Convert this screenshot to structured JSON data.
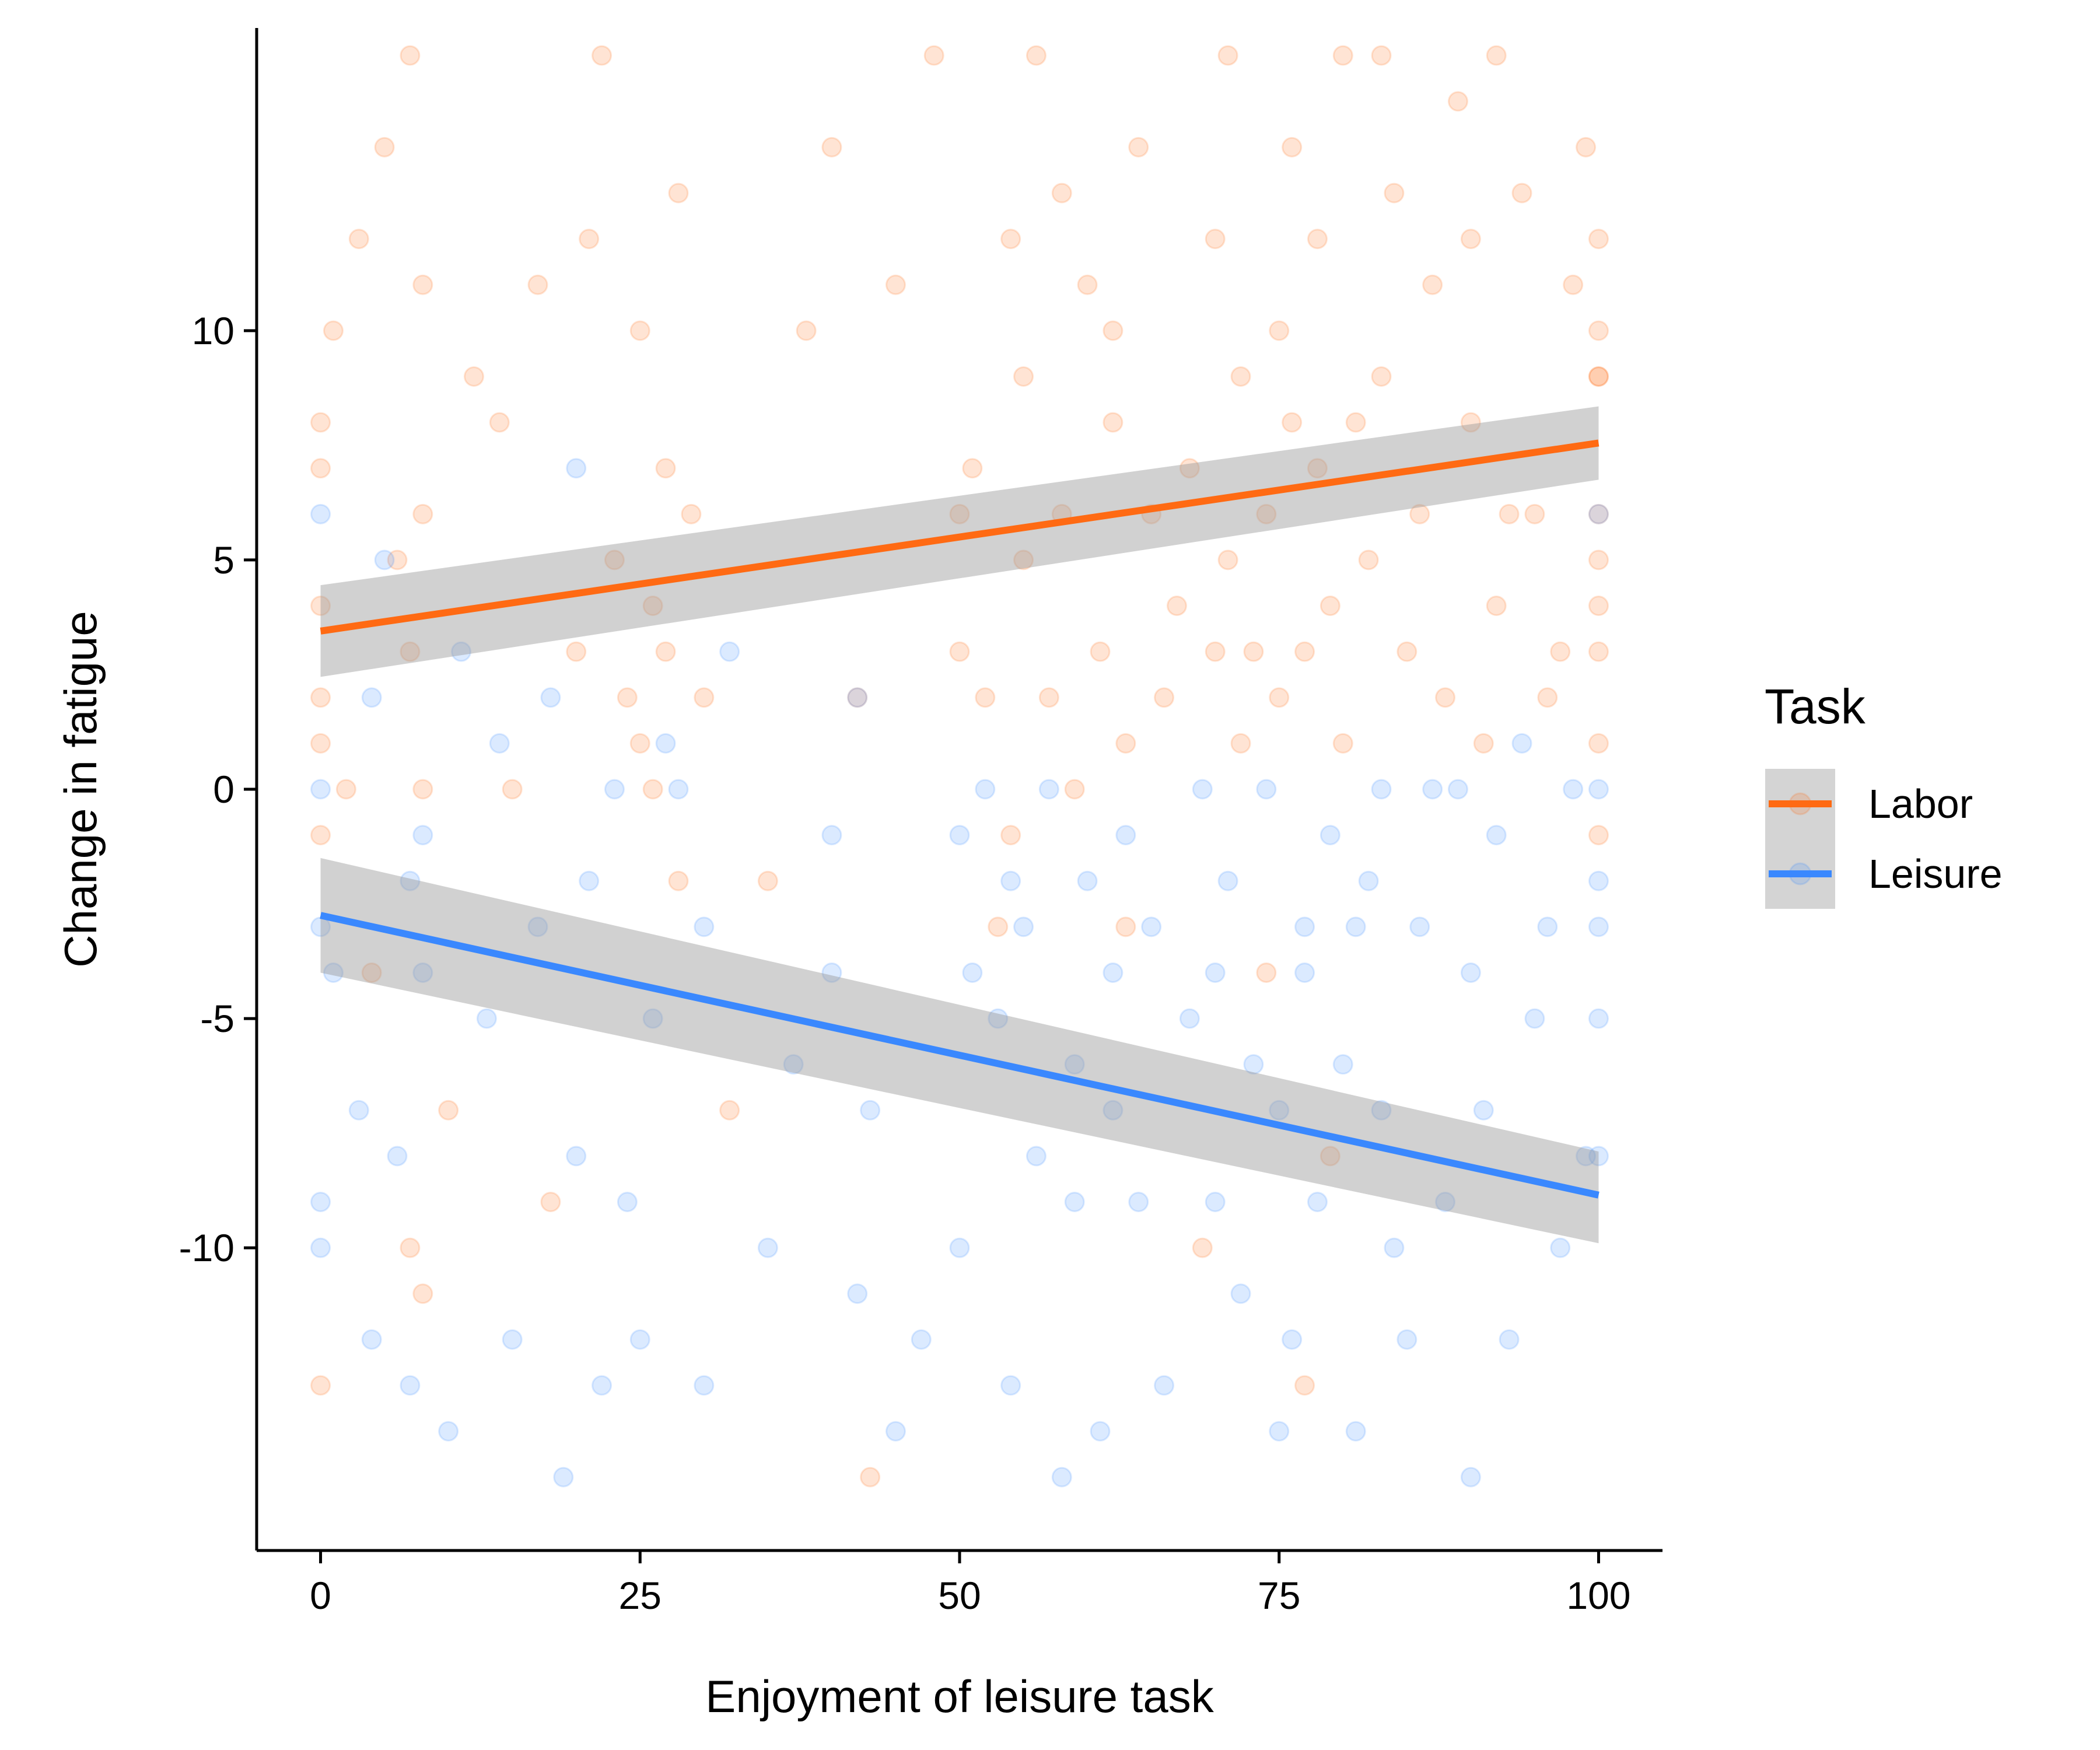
{
  "chart_data": {
    "type": "scatter",
    "xlabel": "Enjoyment of leisure task",
    "ylabel": "Change in fatigue",
    "xlim": [
      -5,
      105
    ],
    "ylim": [
      -16.6,
      16.6
    ],
    "x_ticks": [
      0,
      25,
      50,
      75,
      100
    ],
    "x_tick_labels": [
      "0",
      "25",
      "50",
      "75",
      "100"
    ],
    "y_ticks": [
      -10,
      -5,
      0,
      5,
      10
    ],
    "y_tick_labels": [
      "-10",
      "-5",
      "0",
      "5",
      "10"
    ],
    "grid": false,
    "legend": {
      "title": "Task",
      "position": "right",
      "entries": [
        "Labor",
        "Leisure"
      ]
    },
    "series": [
      {
        "name": "Labor",
        "color": "#ff6a13",
        "point_alpha": 0.18,
        "trend": {
          "x": [
            0,
            100
          ],
          "y": [
            3.45,
            7.55
          ]
        },
        "ci_band": {
          "x": [
            0,
            100
          ],
          "lower": [
            2.45,
            6.75
          ],
          "upper": [
            4.45,
            8.35
          ]
        },
        "points_x": [
          0,
          0,
          0,
          0,
          0,
          0,
          0,
          1,
          2,
          3,
          4,
          5,
          6,
          7,
          7,
          7,
          8,
          8,
          8,
          8,
          10,
          12,
          14,
          15,
          17,
          18,
          20,
          21,
          22,
          23,
          24,
          25,
          25,
          26,
          26,
          27,
          27,
          28,
          28,
          29,
          30,
          32,
          35,
          38,
          40,
          42,
          43,
          45,
          48,
          50,
          50,
          51,
          52,
          53,
          54,
          54,
          55,
          55,
          56,
          57,
          58,
          58,
          59,
          60,
          61,
          62,
          62,
          63,
          63,
          64,
          65,
          66,
          67,
          68,
          69,
          70,
          70,
          71,
          71,
          72,
          72,
          73,
          74,
          74,
          75,
          75,
          76,
          76,
          77,
          77,
          78,
          78,
          79,
          79,
          80,
          80,
          81,
          82,
          83,
          83,
          84,
          85,
          86,
          87,
          88,
          89,
          90,
          90,
          91,
          92,
          92,
          93,
          94,
          95,
          96,
          97,
          98,
          99,
          100,
          100,
          100,
          100,
          100,
          100,
          100,
          100,
          100,
          100
        ],
        "points_y": [
          2,
          4,
          -1,
          1,
          7,
          8,
          -13,
          10,
          0,
          12,
          -4,
          14,
          5,
          -10,
          16,
          3,
          0,
          11,
          6,
          -11,
          -7,
          9,
          8,
          0,
          11,
          -9,
          3,
          12,
          16,
          5,
          2,
          1,
          10,
          0,
          4,
          3,
          7,
          -2,
          13,
          6,
          2,
          -7,
          -2,
          10,
          14,
          2,
          -15,
          11,
          16,
          6,
          3,
          7,
          2,
          -3,
          12,
          -1,
          5,
          9,
          16,
          2,
          6,
          13,
          0,
          11,
          3,
          8,
          10,
          -3,
          1,
          14,
          6,
          2,
          4,
          7,
          -10,
          3,
          12,
          5,
          16,
          9,
          1,
          3,
          6,
          -4,
          10,
          2,
          14,
          8,
          -13,
          3,
          12,
          7,
          4,
          -8,
          16,
          1,
          8,
          5,
          9,
          16,
          13,
          3,
          6,
          11,
          2,
          15,
          12,
          8,
          1,
          4,
          16,
          6,
          13,
          6,
          2,
          3,
          11,
          14,
          9,
          10,
          5,
          4,
          3,
          6,
          9,
          1,
          12,
          -1
        ],
        "points_count": 128
      },
      {
        "name": "Leisure",
        "color": "#3a88fe",
        "point_alpha": 0.18,
        "trend": {
          "x": [
            0,
            100
          ],
          "y": [
            -2.75,
            -8.85
          ]
        },
        "ci_band": {
          "x": [
            0,
            100
          ],
          "lower": [
            -4.0,
            -9.9
          ],
          "upper": [
            -1.5,
            -7.9
          ]
        },
        "points_x": [
          0,
          0,
          0,
          0,
          0,
          1,
          3,
          4,
          4,
          5,
          6,
          7,
          7,
          8,
          8,
          10,
          11,
          13,
          14,
          15,
          17,
          18,
          19,
          20,
          20,
          21,
          22,
          23,
          24,
          25,
          26,
          27,
          28,
          30,
          30,
          32,
          35,
          37,
          40,
          40,
          42,
          42,
          43,
          45,
          47,
          50,
          50,
          51,
          52,
          53,
          54,
          54,
          55,
          56,
          57,
          58,
          59,
          59,
          60,
          61,
          62,
          62,
          63,
          64,
          65,
          66,
          68,
          69,
          70,
          70,
          71,
          72,
          73,
          74,
          75,
          75,
          76,
          77,
          77,
          78,
          79,
          80,
          81,
          81,
          82,
          83,
          83,
          84,
          85,
          86,
          87,
          88,
          89,
          90,
          90,
          91,
          92,
          93,
          94,
          95,
          96,
          97,
          98,
          99,
          100,
          100,
          100,
          100,
          100,
          100
        ],
        "points_y": [
          0,
          -3,
          -9,
          -10,
          6,
          -4,
          -7,
          2,
          -12,
          5,
          -8,
          -2,
          -13,
          -1,
          -4,
          -14,
          3,
          -5,
          1,
          -12,
          -3,
          2,
          -15,
          -8,
          7,
          -2,
          -13,
          0,
          -9,
          -12,
          -5,
          1,
          0,
          -3,
          -13,
          3,
          -10,
          -6,
          -4,
          -1,
          -11,
          2,
          -7,
          -14,
          -12,
          -10,
          -1,
          -4,
          0,
          -5,
          -13,
          -2,
          -3,
          -8,
          0,
          -15,
          -6,
          -9,
          -2,
          -14,
          -4,
          -7,
          -1,
          -9,
          -3,
          -13,
          -5,
          0,
          -4,
          -9,
          -2,
          -11,
          -6,
          0,
          -7,
          -14,
          -12,
          -3,
          -4,
          -9,
          -1,
          -6,
          -3,
          -14,
          -2,
          -7,
          0,
          -10,
          -12,
          -3,
          0,
          -9,
          0,
          -4,
          -15,
          -7,
          -1,
          -12,
          1,
          -5,
          -3,
          -10,
          0,
          -8,
          0,
          -5,
          -3,
          -8,
          6,
          -2
        ],
        "points_count": 110
      }
    ]
  }
}
